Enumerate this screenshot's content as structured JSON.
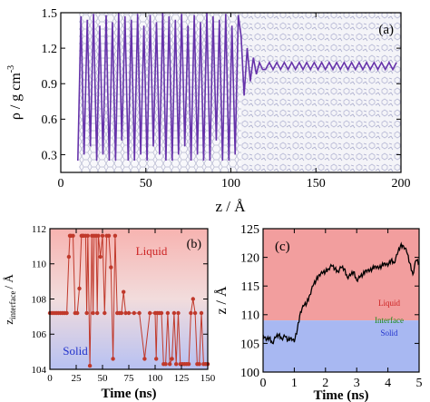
{
  "chart_data": [
    {
      "panel": "(a)",
      "type": "line",
      "xlabel": "z / Å",
      "ylabel": "ρ / g cm",
      "ylabel_superscript": "-3",
      "xlim": [
        0,
        200
      ],
      "ylim": [
        0.15,
        1.5
      ],
      "xticks": [
        0,
        50,
        100,
        150,
        200
      ],
      "yticks": [
        0.3,
        0.6,
        0.9,
        1.2,
        1.5
      ],
      "xtick_labels": [
        "0",
        "50",
        "100",
        "150",
        "200"
      ],
      "ytick_labels": [
        "0.3",
        "0.6",
        "0.9",
        "1.2",
        "1.5"
      ],
      "line_color": "#6633aa",
      "solid_region": {
        "z_start": 10,
        "z_end": 106,
        "peak_spacing": 3.7,
        "peak_high": 1.47,
        "peak_low": 0.25
      },
      "liquid_density": 1.05,
      "background_image": "molecular-snapshot"
    },
    {
      "panel": "(b)",
      "type": "line",
      "xlabel": "Time (ns)",
      "ylabel": "z",
      "ylabel_subscript": "interface",
      "ylabel_unit": "/ Å",
      "xlim": [
        0,
        150
      ],
      "ylim": [
        104,
        112
      ],
      "xticks": [
        0,
        25,
        50,
        75,
        100,
        125,
        150
      ],
      "yticks": [
        104,
        106,
        108,
        110,
        112
      ],
      "xtick_labels": [
        "0",
        "25",
        "50",
        "75",
        "100",
        "125",
        "150"
      ],
      "ytick_labels": [
        "104",
        "106",
        "108",
        "110",
        "112"
      ],
      "region_labels": [
        "Liquid",
        "Solid"
      ],
      "line_color": "#c0392b",
      "series": [
        {
          "x": [
            0,
            2,
            4,
            6,
            8,
            10,
            12,
            14,
            16,
            18,
            19,
            20,
            22,
            24,
            26,
            28,
            30,
            31,
            32,
            34,
            35,
            36,
            38,
            40,
            41,
            42,
            44,
            45,
            46,
            48,
            50,
            52,
            54,
            56,
            58,
            60,
            62,
            64,
            66,
            68,
            70,
            72,
            75,
            80,
            85,
            90,
            95,
            100,
            101,
            102,
            104,
            106,
            108,
            110,
            112,
            114,
            116,
            118,
            120,
            122,
            124,
            126,
            128,
            130,
            132,
            134,
            136,
            138,
            140,
            142,
            144,
            146,
            148,
            150
          ],
          "y": [
            107.2,
            107.2,
            107.2,
            107.2,
            107.2,
            107.2,
            107.2,
            107.2,
            107.2,
            110.4,
            111.6,
            111.6,
            111.6,
            107.2,
            107.2,
            108.6,
            111.6,
            111.6,
            111.6,
            111.6,
            107.2,
            111.6,
            104.2,
            111.6,
            107.2,
            111.6,
            111.6,
            107.2,
            111.6,
            110.4,
            111.6,
            107.2,
            111.6,
            111.6,
            109.8,
            104.6,
            111.6,
            107.2,
            107.2,
            107.2,
            108.4,
            107.2,
            107.2,
            107.2,
            107.2,
            104.6,
            107.2,
            107.2,
            104.6,
            107.2,
            107.2,
            107.2,
            104.3,
            104.3,
            107.2,
            104.3,
            104.6,
            107.2,
            104.3,
            107.2,
            104.3,
            104.3,
            104.3,
            104.3,
            104.3,
            107.2,
            108.0,
            107.2,
            104.3,
            104.3,
            107.2,
            104.3,
            104.3,
            104.3
          ]
        }
      ]
    },
    {
      "panel": "(c)",
      "type": "line",
      "xlabel": "Time (ns)",
      "ylabel": "z / Å",
      "xlim": [
        0,
        5
      ],
      "ylim": [
        100,
        125
      ],
      "xticks": [
        0,
        1,
        2,
        3,
        4,
        5
      ],
      "yticks": [
        100,
        105,
        110,
        115,
        120,
        125
      ],
      "xtick_labels": [
        "0",
        "1",
        "2",
        "3",
        "4",
        "5"
      ],
      "ytick_labels": [
        "100",
        "105",
        "110",
        "115",
        "120",
        "125"
      ],
      "interface_z": 109,
      "region_labels": [
        "Liquid",
        "Interface",
        "Solid"
      ],
      "line_color": "#000000",
      "series": [
        {
          "x": [
            0,
            0.1,
            0.2,
            0.3,
            0.4,
            0.5,
            0.6,
            0.7,
            0.8,
            0.9,
            1.0,
            1.1,
            1.2,
            1.3,
            1.4,
            1.5,
            1.6,
            1.7,
            1.8,
            1.9,
            2.0,
            2.1,
            2.2,
            2.3,
            2.4,
            2.5,
            2.6,
            2.7,
            2.8,
            2.9,
            3.0,
            3.1,
            3.2,
            3.3,
            3.4,
            3.5,
            3.6,
            3.7,
            3.8,
            3.9,
            4.0,
            4.1,
            4.2,
            4.3,
            4.4,
            4.5,
            4.6,
            4.7,
            4.8,
            4.9,
            5.0
          ],
          "y": [
            106.5,
            105.5,
            106.0,
            105.0,
            106.0,
            106.5,
            105.8,
            106.2,
            105.5,
            106.0,
            105.2,
            107.5,
            110.5,
            111.5,
            112.0,
            113.5,
            115.0,
            116.0,
            117.0,
            117.2,
            117.5,
            118.0,
            118.5,
            118.0,
            117.5,
            118.2,
            118.0,
            116.5,
            116.8,
            117.5,
            116.0,
            116.5,
            117.0,
            117.8,
            117.5,
            118.0,
            118.5,
            118.0,
            118.5,
            119.0,
            118.5,
            119.5,
            119.0,
            120.5,
            122.0,
            122.0,
            121.0,
            119.0,
            117.0,
            119.5,
            119.0
          ]
        }
      ]
    }
  ]
}
